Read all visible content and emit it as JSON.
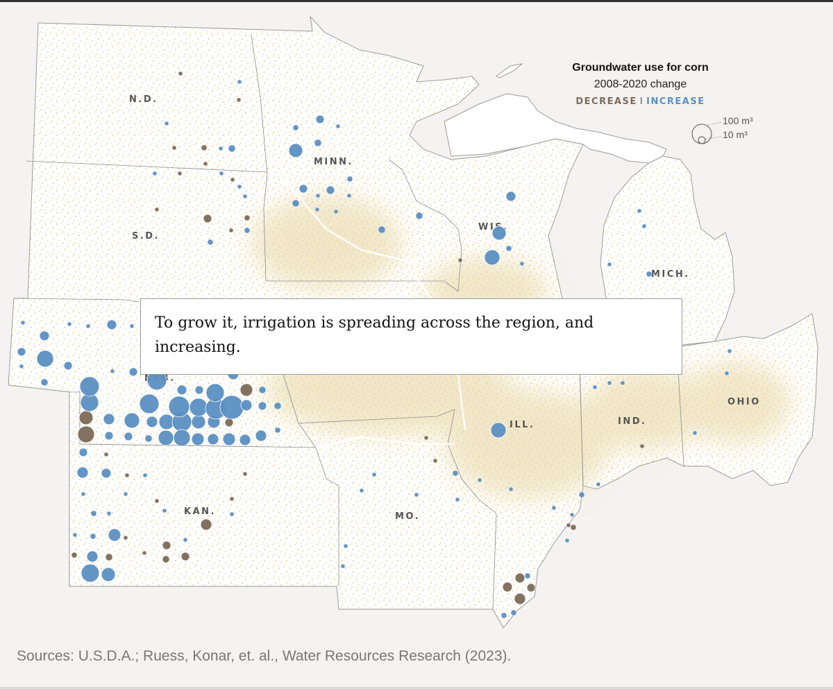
{
  "legend": {
    "title": "Groundwater use for corn",
    "subtitle": "2008-2020 change",
    "decrease_label": "DECREASE",
    "separator": "I",
    "increase_label": "INCREASE",
    "size_large": "100 m³",
    "size_small": "10 m³",
    "increase_color": "#5b8fc2",
    "decrease_color": "#7d6a58",
    "cropland_color": "#dcc98a"
  },
  "state_labels": [
    "N.D.",
    "MINN.",
    "S.D.",
    "WIS.",
    "MICH.",
    "NEB.",
    "ILL.",
    "IND.",
    "OHIO",
    "KAN.",
    "MO."
  ],
  "caption": "To grow it, irrigation is spreading across the region, and increasing.",
  "source": "Sources: U.S.D.A.; Ruess, Konar, et. al., Water Resources Research (2023)."
}
